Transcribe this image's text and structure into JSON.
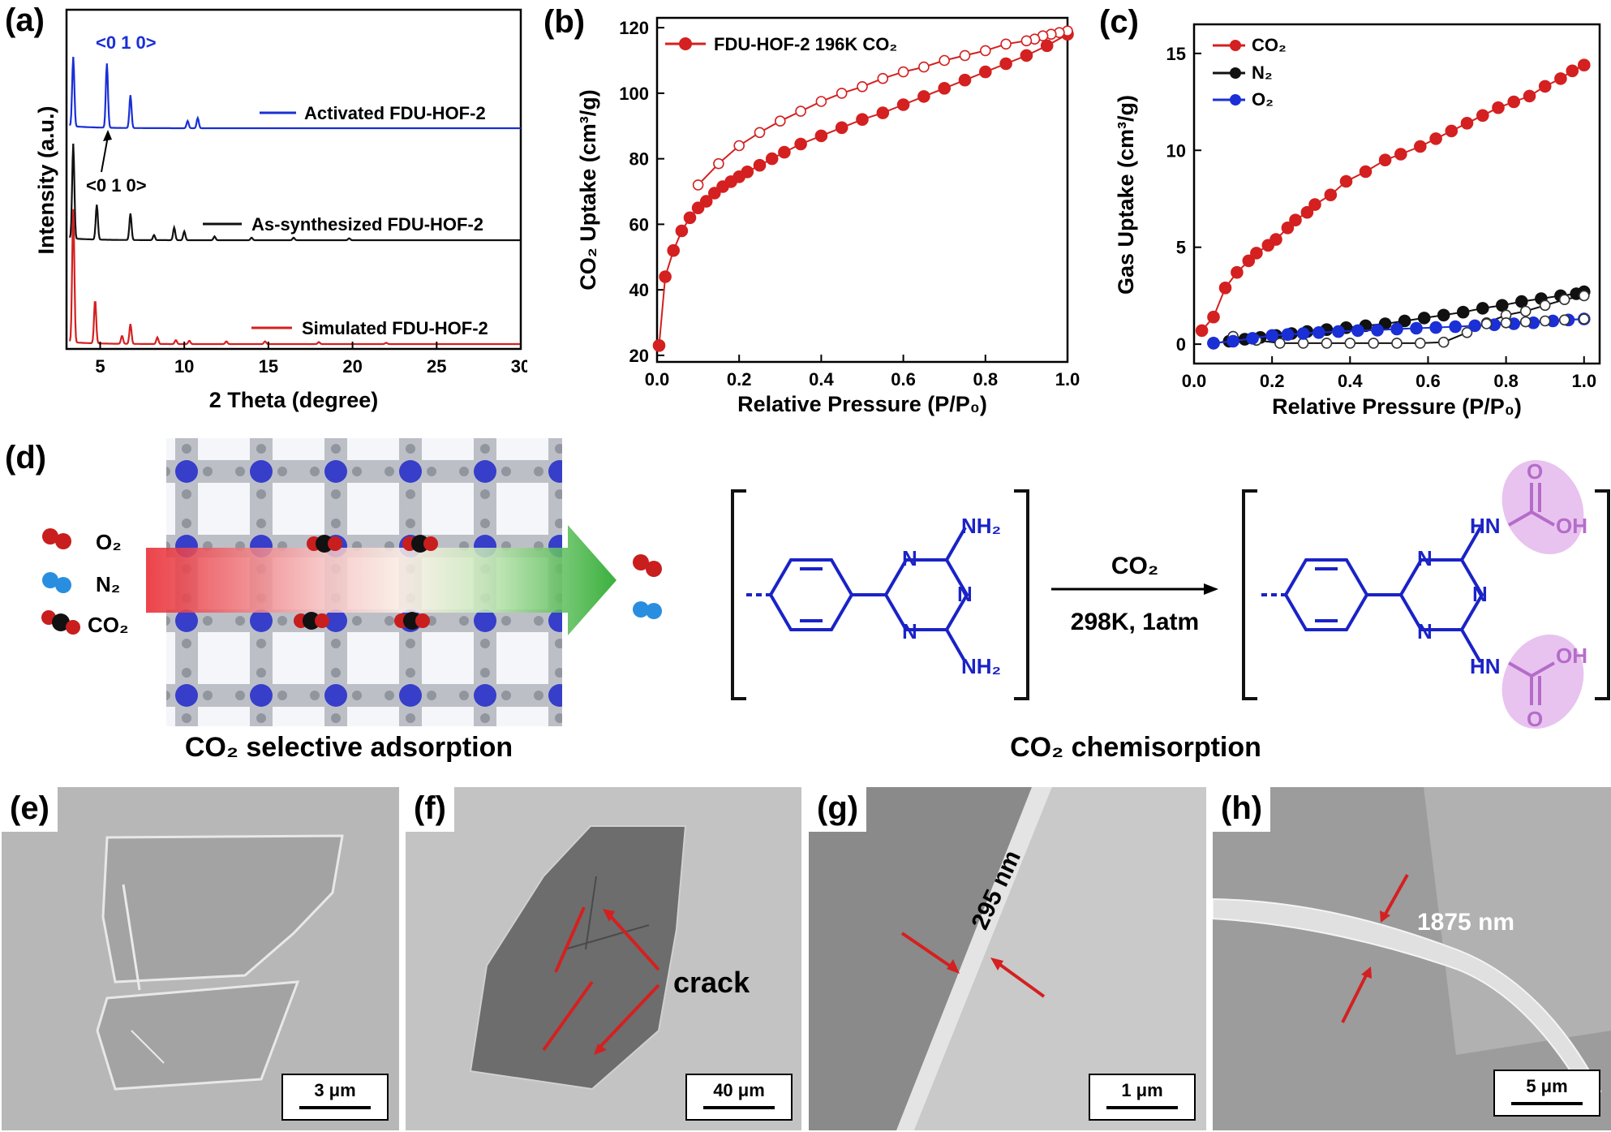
{
  "panel_labels": {
    "a": "(a)",
    "b": "(b)",
    "c": "(c)",
    "d": "(d)",
    "e": "(e)",
    "f": "(f)",
    "g": "(g)",
    "h": "(h)"
  },
  "chart_data": [
    {
      "id": "a",
      "type": "line",
      "xlabel": "2 Theta (degree)",
      "ylabel": "Intensity (a.u.)",
      "xlim": [
        3,
        30
      ],
      "xticks": [
        5,
        10,
        15,
        20,
        25,
        30
      ],
      "series": [
        {
          "name": "Activated FDU-HOF-2",
          "color": "#1a2fd6",
          "peaks": [
            [
              3.4,
              95
            ],
            [
              5.4,
              88
            ],
            [
              6.8,
              45
            ],
            [
              10.2,
              10
            ],
            [
              10.8,
              14
            ]
          ]
        },
        {
          "name": "As-synthesized FDU-HOF-2",
          "color": "#111111",
          "peaks": [
            [
              3.4,
              150
            ],
            [
              4.8,
              55
            ],
            [
              6.8,
              42
            ],
            [
              8.2,
              8
            ],
            [
              9.4,
              20
            ],
            [
              10.0,
              14
            ],
            [
              11.8,
              6
            ],
            [
              14.0,
              4
            ],
            [
              16.5,
              4
            ],
            [
              19.8,
              3
            ]
          ]
        },
        {
          "name": "Simulated FDU-HOF-2",
          "color": "#d42020",
          "peaks": [
            [
              3.4,
              200
            ],
            [
              4.7,
              65
            ],
            [
              6.3,
              12
            ],
            [
              6.8,
              30
            ],
            [
              8.4,
              10
            ],
            [
              9.5,
              6
            ],
            [
              10.3,
              5
            ],
            [
              12.5,
              4
            ],
            [
              14.8,
              4
            ],
            [
              18.0,
              3
            ],
            [
              22.0,
              2
            ]
          ]
        }
      ],
      "annotations": [
        "<0 1 0>",
        "<0 1 0>"
      ]
    },
    {
      "id": "b",
      "type": "line",
      "xlabel": "Relative Pressure (P/P₀)",
      "ylabel": "CO₂ Uptake (cm³/g)",
      "xlim": [
        0,
        1.0
      ],
      "ylim": [
        18,
        123
      ],
      "xticks": [
        0.0,
        0.2,
        0.4,
        0.6,
        0.8,
        1.0
      ],
      "yticks": [
        20,
        40,
        60,
        80,
        100,
        120
      ],
      "legend": "FDU-HOF-2 196K CO₂",
      "series": [
        {
          "name": "adsorption",
          "color": "#d42020",
          "filled": true,
          "x": [
            0.005,
            0.02,
            0.04,
            0.06,
            0.08,
            0.1,
            0.12,
            0.14,
            0.16,
            0.18,
            0.2,
            0.22,
            0.25,
            0.28,
            0.31,
            0.35,
            0.4,
            0.45,
            0.5,
            0.55,
            0.6,
            0.65,
            0.7,
            0.75,
            0.8,
            0.85,
            0.9,
            0.95,
            1.0
          ],
          "y": [
            23,
            44,
            52,
            58,
            62,
            65,
            67,
            69.5,
            71.5,
            73,
            74.5,
            76,
            78,
            80,
            82,
            84.5,
            87,
            89.5,
            92,
            94,
            96.5,
            99,
            101.5,
            104,
            106.5,
            109,
            111.5,
            114.5,
            118
          ]
        },
        {
          "name": "desorption",
          "color": "#d42020",
          "filled": false,
          "x": [
            1.0,
            0.98,
            0.96,
            0.94,
            0.92,
            0.9,
            0.85,
            0.8,
            0.75,
            0.7,
            0.65,
            0.6,
            0.55,
            0.5,
            0.45,
            0.4,
            0.35,
            0.3,
            0.25,
            0.2,
            0.15,
            0.1
          ],
          "y": [
            119,
            118.5,
            118,
            117.5,
            116.5,
            116,
            115,
            113,
            111.5,
            110,
            108,
            106.5,
            104.5,
            102,
            100,
            97.5,
            94.5,
            91.5,
            88,
            84,
            78.5,
            72
          ]
        }
      ]
    },
    {
      "id": "c",
      "type": "line",
      "xlabel": "Relative Pressure (P/P₀)",
      "ylabel": "Gas Uptake (cm³/g)",
      "xlim": [
        0,
        1.04
      ],
      "ylim": [
        -1,
        16.5
      ],
      "xticks": [
        0.0,
        0.2,
        0.4,
        0.6,
        0.8,
        1.0
      ],
      "yticks": [
        0,
        5,
        10,
        15
      ],
      "legend": [
        "CO₂",
        "N₂",
        "O₂"
      ],
      "series": [
        {
          "name": "CO₂ adsorption",
          "color": "#d42020",
          "filled": true,
          "x": [
            0.02,
            0.05,
            0.08,
            0.11,
            0.14,
            0.16,
            0.19,
            0.21,
            0.24,
            0.26,
            0.29,
            0.31,
            0.35,
            0.39,
            0.44,
            0.49,
            0.53,
            0.58,
            0.62,
            0.66,
            0.7,
            0.74,
            0.78,
            0.82,
            0.86,
            0.9,
            0.94,
            0.97,
            1.0
          ],
          "y": [
            0.7,
            1.4,
            2.9,
            3.7,
            4.3,
            4.7,
            5.1,
            5.4,
            6.0,
            6.4,
            6.8,
            7.2,
            7.7,
            8.4,
            8.9,
            9.5,
            9.8,
            10.2,
            10.6,
            11.0,
            11.4,
            11.8,
            12.2,
            12.5,
            12.8,
            13.3,
            13.7,
            14.1,
            14.4
          ]
        },
        {
          "name": "N₂ adsorption",
          "color": "#111111",
          "filled": true,
          "x": [
            0.05,
            0.09,
            0.13,
            0.17,
            0.21,
            0.25,
            0.29,
            0.34,
            0.39,
            0.44,
            0.49,
            0.54,
            0.59,
            0.64,
            0.69,
            0.74,
            0.79,
            0.84,
            0.89,
            0.94,
            0.98,
            1.0
          ],
          "y": [
            0.05,
            0.15,
            0.25,
            0.35,
            0.45,
            0.55,
            0.65,
            0.75,
            0.85,
            0.95,
            1.05,
            1.2,
            1.35,
            1.5,
            1.65,
            1.85,
            2.0,
            2.2,
            2.35,
            2.5,
            2.6,
            2.7
          ]
        },
        {
          "name": "N₂ desorption",
          "color": "#111111",
          "filled": false,
          "x": [
            1.0,
            0.95,
            0.9,
            0.85,
            0.8,
            0.75,
            0.7,
            0.64,
            0.58,
            0.52,
            0.46,
            0.4,
            0.34,
            0.28,
            0.22,
            0.16,
            0.1
          ],
          "y": [
            2.5,
            2.3,
            2.0,
            1.7,
            1.5,
            1.1,
            0.6,
            0.1,
            0.05,
            0.05,
            0.05,
            0.05,
            0.05,
            0.05,
            0.05,
            0.2,
            0.4
          ]
        },
        {
          "name": "O₂ adsorption",
          "color": "#1a2fd6",
          "filled": true,
          "x": [
            0.05,
            0.1,
            0.15,
            0.2,
            0.24,
            0.28,
            0.32,
            0.37,
            0.42,
            0.47,
            0.52,
            0.57,
            0.62,
            0.67,
            0.72,
            0.77,
            0.82,
            0.87,
            0.92,
            0.96,
            1.0
          ],
          "y": [
            0.05,
            0.15,
            0.3,
            0.45,
            0.5,
            0.55,
            0.6,
            0.65,
            0.7,
            0.72,
            0.78,
            0.82,
            0.86,
            0.9,
            0.95,
            1.0,
            1.05,
            1.1,
            1.2,
            1.25,
            1.3
          ]
        },
        {
          "name": "O₂ desorption",
          "color": "#1a2fd6",
          "filled": false,
          "x": [
            1.0,
            0.95,
            0.9,
            0.85,
            0.8,
            0.75
          ],
          "y": [
            1.3,
            1.25,
            1.2,
            1.15,
            1.1,
            1.05
          ]
        }
      ]
    }
  ],
  "panel_d": {
    "gases": {
      "o2": "O₂",
      "n2": "N₂",
      "co2": "CO₂"
    },
    "left_caption": "CO₂ selective adsorption",
    "right_caption": "CO₂ chemisorption",
    "reaction_top": "CO₂",
    "reaction_bottom": "298K, 1atm",
    "reactant_groups": {
      "nh2_top": "NH₂",
      "nh2_bottom": "NH₂",
      "n": "N"
    },
    "product_groups": {
      "nh": "HN",
      "oh": "OH",
      "o": "O",
      "n": "N"
    }
  },
  "sem": {
    "e": {
      "scale": "3 μm"
    },
    "f": {
      "scale": "40 μm",
      "annotation": "crack"
    },
    "g": {
      "scale": "1 μm",
      "annotation": "295 nm"
    },
    "h": {
      "scale": "5 μm",
      "annotation": "1875 nm"
    }
  }
}
